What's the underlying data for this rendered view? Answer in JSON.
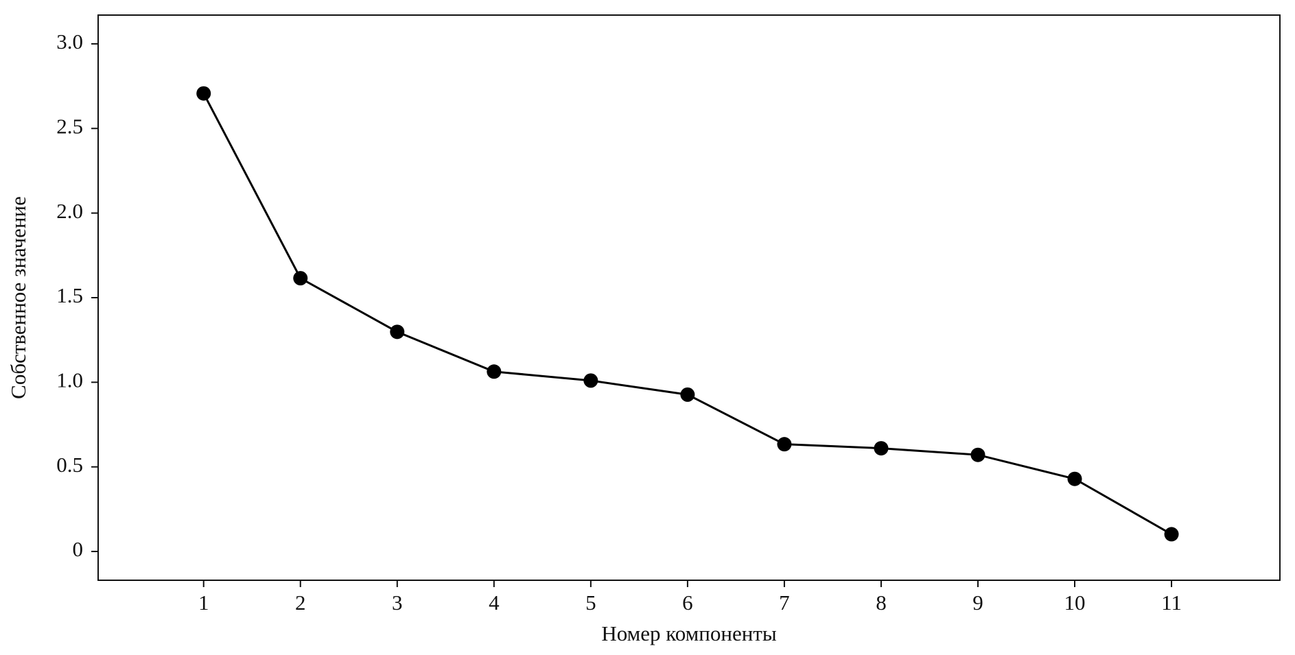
{
  "chart_data": {
    "type": "line",
    "xlabel": "Номер компоненты",
    "ylabel": "Собственное значение",
    "x": [
      1,
      2,
      3,
      4,
      5,
      6,
      7,
      8,
      9,
      10,
      11
    ],
    "series": [
      {
        "color": "#000000",
        "values": [
          2.707,
          1.615,
          1.298,
          1.063,
          1.01,
          0.927,
          0.634,
          0.61,
          0.571,
          0.429,
          0.102
        ]
      }
    ],
    "xlim": [
      -0.09,
      12.12
    ],
    "xticks": [
      1,
      2,
      3,
      4,
      5,
      6,
      7,
      8,
      9,
      10,
      11
    ],
    "ylim": [
      -0.17,
      3.17
    ],
    "yticks": [
      0,
      0.5,
      {
        "value": 1,
        "label": "1.0"
      },
      1.5,
      {
        "value": 2,
        "label": "2.0"
      },
      2.5,
      {
        "value": 3,
        "label": "3.0"
      }
    ],
    "grid": false
  }
}
